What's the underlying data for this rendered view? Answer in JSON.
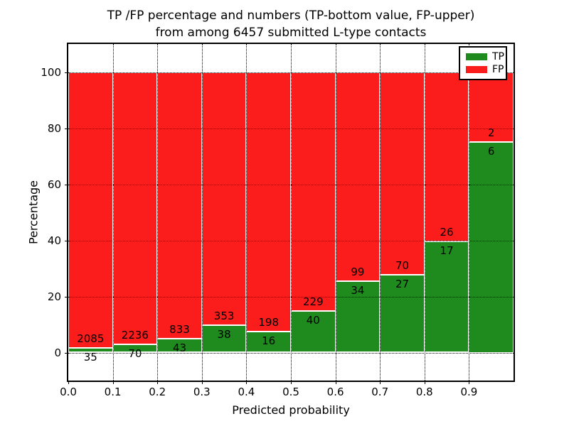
{
  "chart_data": {
    "type": "bar",
    "stacked": "percent",
    "title": "TP /FP percentage and numbers (TP-bottom value, FP-upper) from among 6457 submitted L-type contacts",
    "title_lines": [
      "TP /FP percentage and numbers (TP-bottom value, FP-upper)",
      "from among 6457 submitted L-type contacts"
    ],
    "xlabel": "Predicted probability",
    "ylabel": "Percentage",
    "categories": [
      "0.0",
      "0.1",
      "0.2",
      "0.3",
      "0.4",
      "0.5",
      "0.6",
      "0.7",
      "0.8",
      "0.9"
    ],
    "xlim": [
      0.0,
      1.0
    ],
    "ylim": [
      -10,
      110
    ],
    "yticks": [
      0,
      20,
      40,
      60,
      80,
      100
    ],
    "grid": "black dotted, drawn above bars",
    "legend_position": "upper right",
    "bar_edge_color": "#ffffff",
    "series": [
      {
        "name": "TP",
        "color": "#1f8b1f",
        "values": [
          35,
          70,
          43,
          38,
          16,
          40,
          34,
          27,
          17,
          6
        ]
      },
      {
        "name": "FP",
        "color": "#fb1c1c",
        "values": [
          2085,
          2236,
          833,
          353,
          198,
          229,
          99,
          70,
          26,
          2
        ]
      }
    ],
    "tp_percent_approx": [
      1.65,
      3.04,
      4.91,
      9.72,
      7.48,
      14.87,
      25.56,
      27.84,
      39.53,
      75.0
    ],
    "total_contacts_in_title": 6457
  }
}
